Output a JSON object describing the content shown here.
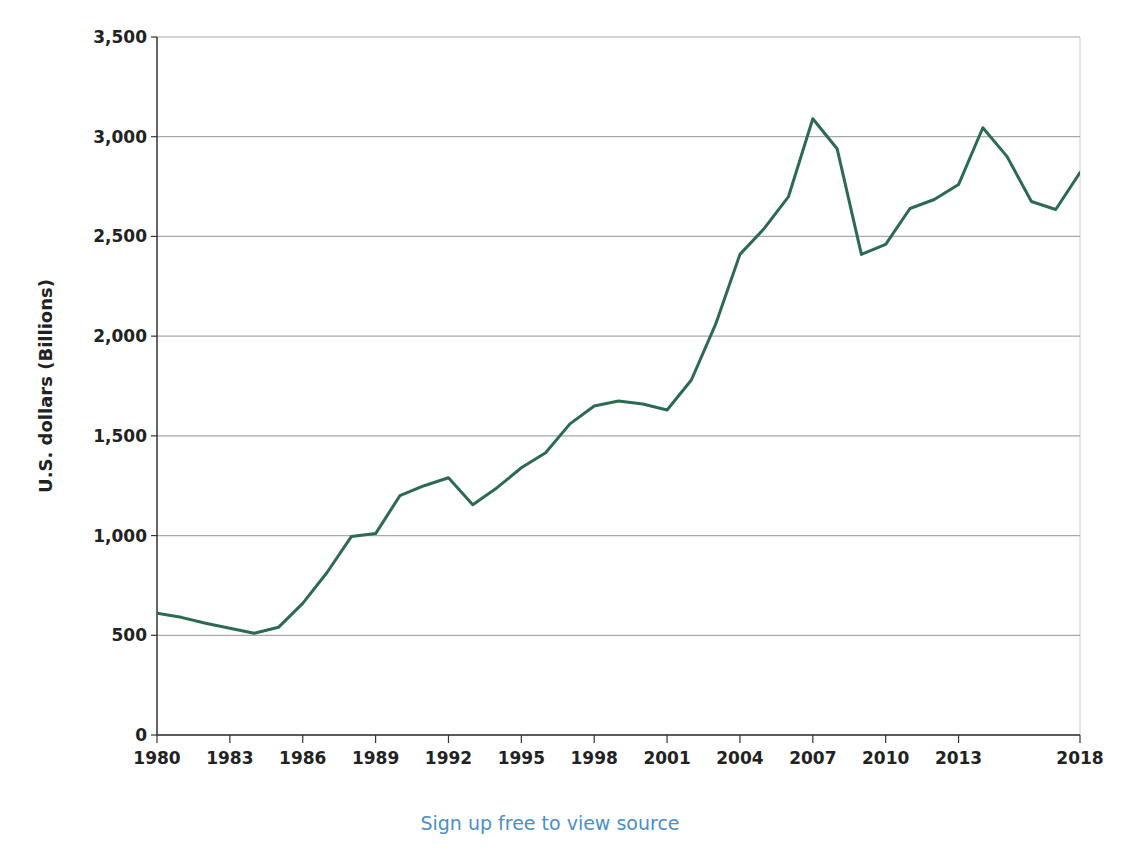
{
  "chart_data": {
    "type": "line",
    "y_label": "U.S. dollars (Billions)",
    "footnote": "Sign up free to view source",
    "x": [
      1980,
      1981,
      1982,
      1983,
      1984,
      1985,
      1986,
      1987,
      1988,
      1989,
      1990,
      1991,
      1992,
      1993,
      1994,
      1995,
      1996,
      1997,
      1998,
      1999,
      2000,
      2001,
      2002,
      2003,
      2004,
      2005,
      2006,
      2007,
      2008,
      2009,
      2010,
      2011,
      2012,
      2013,
      2014,
      2015,
      2016,
      2017,
      2018
    ],
    "values": [
      610,
      590,
      560,
      535,
      510,
      540,
      660,
      815,
      995,
      1010,
      1200,
      1250,
      1290,
      1155,
      1240,
      1340,
      1415,
      1560,
      1650,
      1675,
      1660,
      1630,
      1780,
      2060,
      2410,
      2540,
      2700,
      3090,
      2940,
      2410,
      2460,
      2640,
      2685,
      2760,
      3045,
      2900,
      2675,
      2635,
      2820
    ],
    "color": "#2d6a52",
    "xlim": [
      1980,
      2018
    ],
    "xticks": [
      1980,
      1983,
      1986,
      1989,
      1992,
      1995,
      1998,
      2001,
      2004,
      2007,
      2010,
      2013,
      2018
    ],
    "ylim": [
      0,
      3500
    ],
    "yticks": [
      0,
      500,
      {
        "value": 1000,
        "label": "1,000"
      },
      {
        "value": 1500,
        "label": "1,500"
      },
      {
        "value": 2000,
        "label": "2,000"
      },
      {
        "value": 2500,
        "label": "2,500"
      },
      {
        "value": 3000,
        "label": "3,000"
      },
      {
        "value": 3500,
        "label": "3,500"
      }
    ],
    "grid": true
  }
}
